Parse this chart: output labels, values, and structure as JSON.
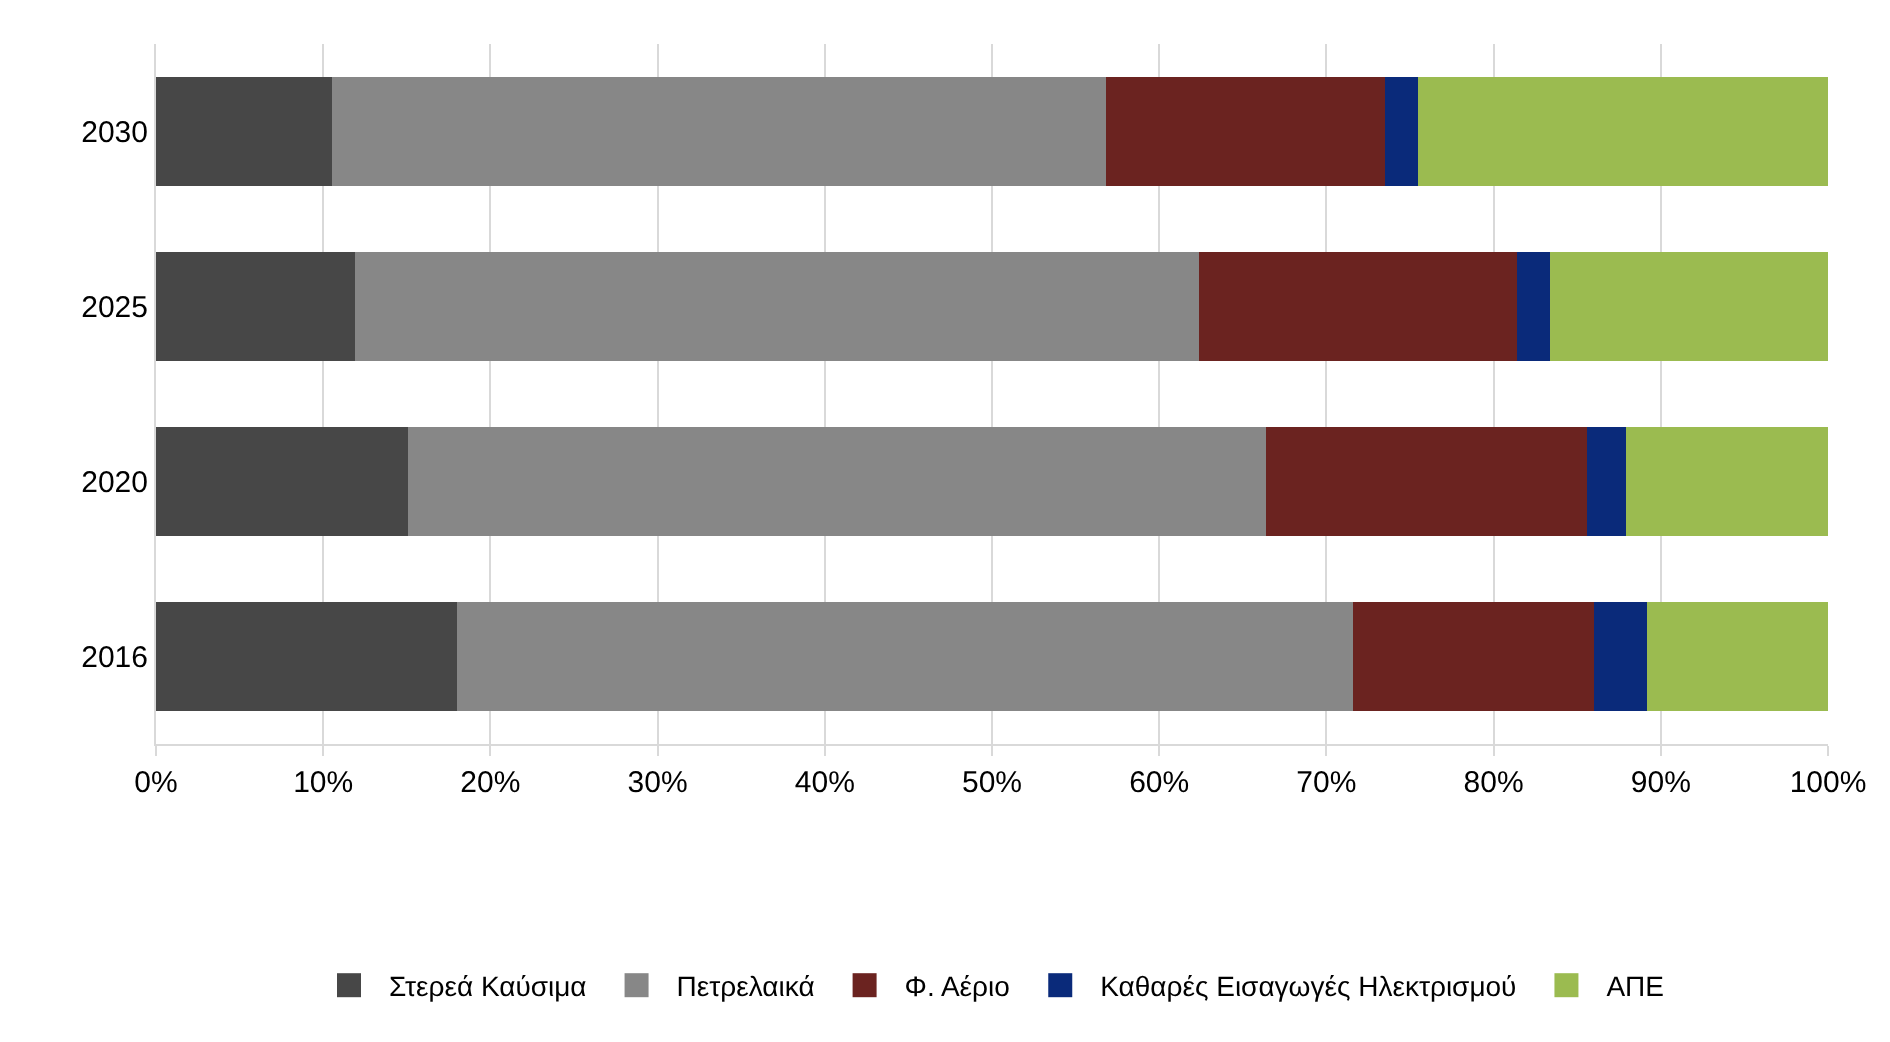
{
  "chart_data": {
    "type": "bar",
    "orientation": "horizontal",
    "stacked": true,
    "categories": [
      "2030",
      "2025",
      "2020",
      "2016"
    ],
    "series": [
      {
        "name": "Στερεά Καύσιμα",
        "color": "#474747",
        "values": [
          10.5,
          11.9,
          15.1,
          18.0
        ]
      },
      {
        "name": "Πετρελαικά",
        "color": "#878787",
        "values": [
          46.3,
          50.5,
          51.3,
          53.6
        ]
      },
      {
        "name": "Φ. Αέριο",
        "color": "#6b2320",
        "values": [
          16.7,
          19.0,
          19.2,
          14.4
        ]
      },
      {
        "name": "Καθαρές Εισαγωγές Ηλεκτρισμού",
        "color": "#0a2a7a",
        "values": [
          2.0,
          2.0,
          2.3,
          3.2
        ]
      },
      {
        "name": "ΑΠΕ",
        "color": "#9bbb50",
        "values": [
          24.5,
          16.6,
          12.1,
          10.8
        ]
      }
    ],
    "xlim": [
      0,
      100
    ],
    "xticks": [
      {
        "value": 0,
        "label": "0%"
      },
      {
        "value": 10,
        "label": "10%"
      },
      {
        "value": 20,
        "label": "20%"
      },
      {
        "value": 30,
        "label": "30%"
      },
      {
        "value": 40,
        "label": "40%"
      },
      {
        "value": 50,
        "label": "50%"
      },
      {
        "value": 60,
        "label": "60%"
      },
      {
        "value": 70,
        "label": "70%"
      },
      {
        "value": 80,
        "label": "80%"
      },
      {
        "value": 90,
        "label": "90%"
      },
      {
        "value": 100,
        "label": "100%"
      }
    ],
    "grid": "x",
    "legend": "bottom"
  }
}
